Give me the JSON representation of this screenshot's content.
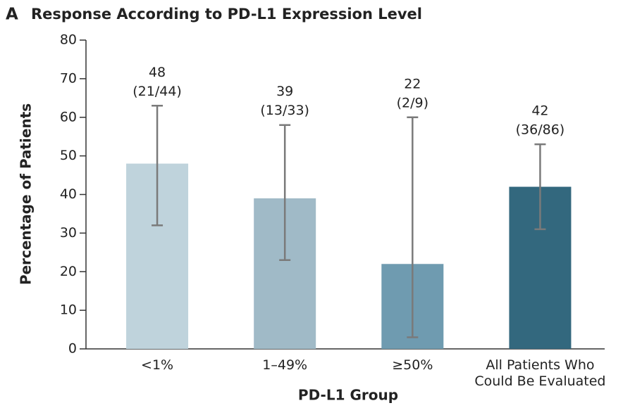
{
  "chart_data": {
    "type": "bar",
    "panel": "A",
    "title": "Response According to PD-L1 Expression Level",
    "xlabel": "PD-L1 Group",
    "ylabel": "Percentage of Patients",
    "categories": [
      "<1%",
      "1–49%",
      "≥50%",
      "All Patients Who Could Be Evaluated"
    ],
    "values": [
      48,
      39,
      22,
      42
    ],
    "ci_low": [
      32,
      23,
      3,
      31
    ],
    "ci_high": [
      63,
      58,
      60,
      53
    ],
    "fractions": [
      "(21/44)",
      "(13/33)",
      "(2/9)",
      "(36/86)"
    ],
    "colors": [
      "#bfd3dc",
      "#a0bac7",
      "#6f9bb0",
      "#33687e"
    ],
    "error_color": "#7a7a7a",
    "ylim": [
      0,
      80
    ],
    "yticks": [
      0,
      10,
      20,
      30,
      40,
      50,
      60,
      70,
      80
    ]
  }
}
